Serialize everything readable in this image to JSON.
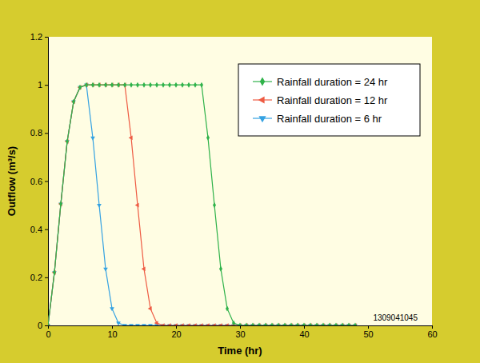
{
  "chart_data": {
    "type": "line",
    "x_label": "Time (hr)",
    "y_label": "Outflow (m³/s)",
    "annotation": "1309041045",
    "xlim": [
      0,
      60
    ],
    "xticks": [
      0,
      10,
      20,
      30,
      40,
      50,
      60
    ],
    "ylim": [
      0,
      1.2
    ],
    "yticks": [
      0,
      0.2,
      0.4,
      0.6,
      0.8,
      1,
      1.2
    ],
    "grid": false,
    "legend": "upper right",
    "x": [
      0,
      1,
      2,
      3,
      4,
      5,
      6,
      7,
      8,
      9,
      10,
      11,
      12,
      13,
      14,
      15,
      16,
      17,
      18,
      19,
      20,
      21,
      22,
      23,
      24,
      25,
      26,
      27,
      28,
      29,
      30,
      31,
      32,
      33,
      34,
      35,
      36,
      37,
      38,
      39,
      40,
      41,
      42,
      43,
      44,
      45,
      46,
      47,
      48
    ],
    "series": [
      {
        "name": "Rainfall duration = 24 hr",
        "color": "#2fb24a",
        "marker": "diamond",
        "line_style": "solid",
        "values": [
          0,
          0.22,
          0.505,
          0.765,
          0.93,
          0.99,
          1,
          1,
          1,
          1,
          1,
          1,
          1,
          1,
          1,
          1,
          1,
          1,
          1,
          1,
          1,
          1,
          1,
          1,
          1,
          0.78,
          0.5,
          0.235,
          0.07,
          0.01,
          0,
          0,
          0,
          0,
          0,
          0,
          0,
          0,
          0,
          0,
          0,
          0,
          0,
          0,
          0,
          0,
          0,
          0,
          0
        ]
      },
      {
        "name": "Rainfall duration = 12 hr",
        "color": "#ee5b43",
        "marker": "triangle-left",
        "line_style": "solid",
        "values": [
          0,
          0.22,
          0.505,
          0.765,
          0.93,
          0.99,
          1,
          1,
          1,
          1,
          1,
          1,
          1,
          0.78,
          0.5,
          0.235,
          0.07,
          0.01,
          0,
          0,
          0,
          0,
          0,
          0,
          0,
          0,
          0,
          0,
          0,
          0,
          0,
          0,
          0,
          0,
          0,
          0,
          0,
          0,
          0,
          0,
          0,
          0,
          0,
          0,
          0,
          0,
          0,
          0,
          0
        ]
      },
      {
        "name": "Rainfall duration = 6 hr",
        "color": "#35a2e2",
        "marker": "triangle-down",
        "line_style": "solid",
        "values": [
          0,
          0.22,
          0.505,
          0.765,
          0.93,
          0.99,
          1,
          0.78,
          0.5,
          0.235,
          0.07,
          0.01,
          0,
          0,
          0,
          0,
          0,
          0,
          0,
          0,
          0,
          0,
          0,
          0,
          0,
          0,
          0,
          0,
          0,
          0,
          0,
          0,
          0,
          0,
          0,
          0,
          0,
          0,
          0,
          0,
          0,
          0,
          0,
          0,
          0,
          0,
          0,
          0,
          0
        ]
      }
    ]
  }
}
